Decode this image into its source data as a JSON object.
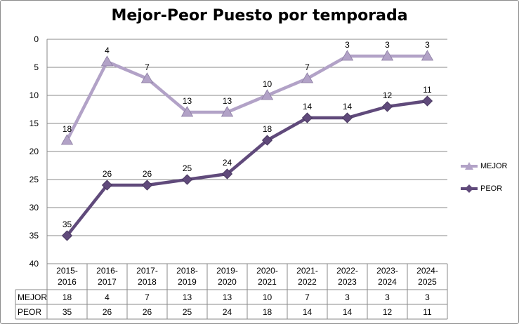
{
  "chart_data": {
    "type": "line",
    "title": "Mejor-Peor Puesto por temporada",
    "categories": [
      [
        "2015-",
        "2016"
      ],
      [
        "2016-",
        "2017"
      ],
      [
        "2017-",
        "2018"
      ],
      [
        "2018-",
        "2019"
      ],
      [
        "2019-",
        "2020"
      ],
      [
        "2020-",
        "2021"
      ],
      [
        "2021-",
        "2022"
      ],
      [
        "2022-",
        "2023"
      ],
      [
        "2023-",
        "2024"
      ],
      [
        "2024-",
        "2025"
      ]
    ],
    "series": [
      {
        "name": "MEJOR",
        "values": [
          18,
          4,
          7,
          13,
          13,
          10,
          7,
          3,
          3,
          3
        ],
        "color": "#b2a2c7",
        "marker": "triangle"
      },
      {
        "name": "PEOR",
        "values": [
          35,
          26,
          26,
          25,
          24,
          18,
          14,
          14,
          12,
          11
        ],
        "color": "#604a7b",
        "marker": "diamond"
      }
    ],
    "y_axis": {
      "min": 0,
      "max": 40,
      "step": 5,
      "inverted": true,
      "ticks": [
        "0",
        "5",
        "10",
        "15",
        "20",
        "25",
        "30",
        "35",
        "40"
      ]
    },
    "grid": true,
    "legend": "right",
    "data_table": true
  }
}
